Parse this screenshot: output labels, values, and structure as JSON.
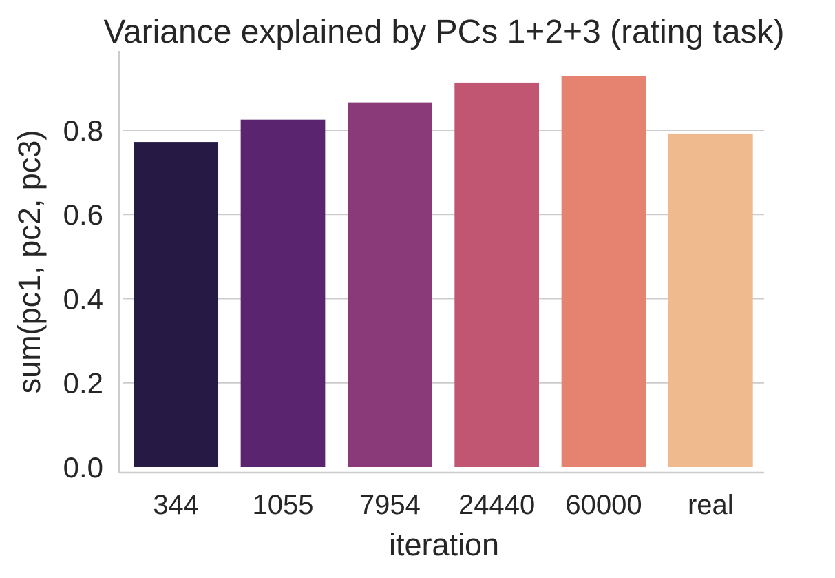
{
  "chart_data": {
    "type": "bar",
    "title": "Variance explained by PCs 1+2+3 (rating task)",
    "xlabel": "iteration",
    "ylabel": "sum(pc1, pc2, pc3)",
    "categories": [
      "344",
      "1055",
      "7954",
      "24440",
      "60000",
      "real"
    ],
    "values": [
      0.772,
      0.825,
      0.866,
      0.913,
      0.928,
      0.792
    ],
    "colors": [
      "#261a45",
      "#5b246f",
      "#8b3a79",
      "#c05672",
      "#e58370",
      "#efbb8e"
    ],
    "ylim": [
      0,
      0.975
    ],
    "yticks": [
      0.0,
      0.2,
      0.4,
      0.6,
      0.8
    ],
    "ytick_labels": [
      "0.0",
      "0.2",
      "0.4",
      "0.6",
      "0.8"
    ],
    "grid": "horizontal",
    "legend": "none",
    "axis_color": "#cccccc",
    "grid_color": "#cccccc",
    "text_color": "#262626"
  }
}
